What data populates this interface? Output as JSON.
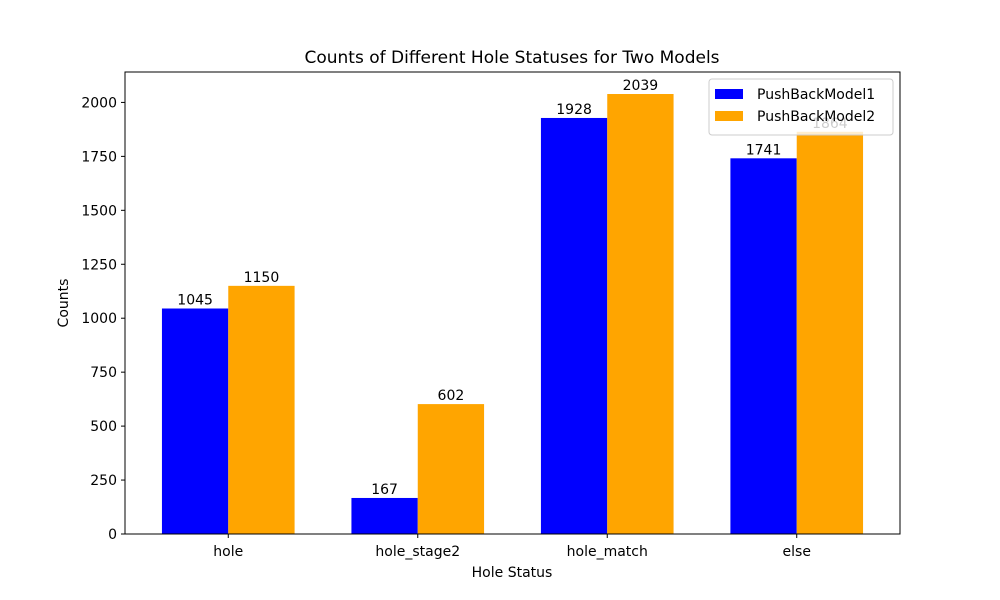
{
  "chart_data": {
    "type": "bar",
    "title": "Counts of Different Hole Statuses for Two Models",
    "xlabel": "Hole Status",
    "ylabel": "Counts",
    "categories": [
      "hole",
      "hole_stage2",
      "hole_match",
      "else"
    ],
    "series": [
      {
        "name": "PushBackModel1",
        "color": "#0000ff",
        "values": [
          1045,
          167,
          1928,
          1741
        ]
      },
      {
        "name": "PushBackModel2",
        "color": "#ffa500",
        "values": [
          1150,
          602,
          2039,
          1864
        ]
      }
    ],
    "ylim": [
      0,
      2141
    ],
    "yticks": [
      0,
      250,
      500,
      750,
      1000,
      1250,
      1500,
      1750,
      2000
    ],
    "grid": false,
    "legend_position": "top-right"
  }
}
